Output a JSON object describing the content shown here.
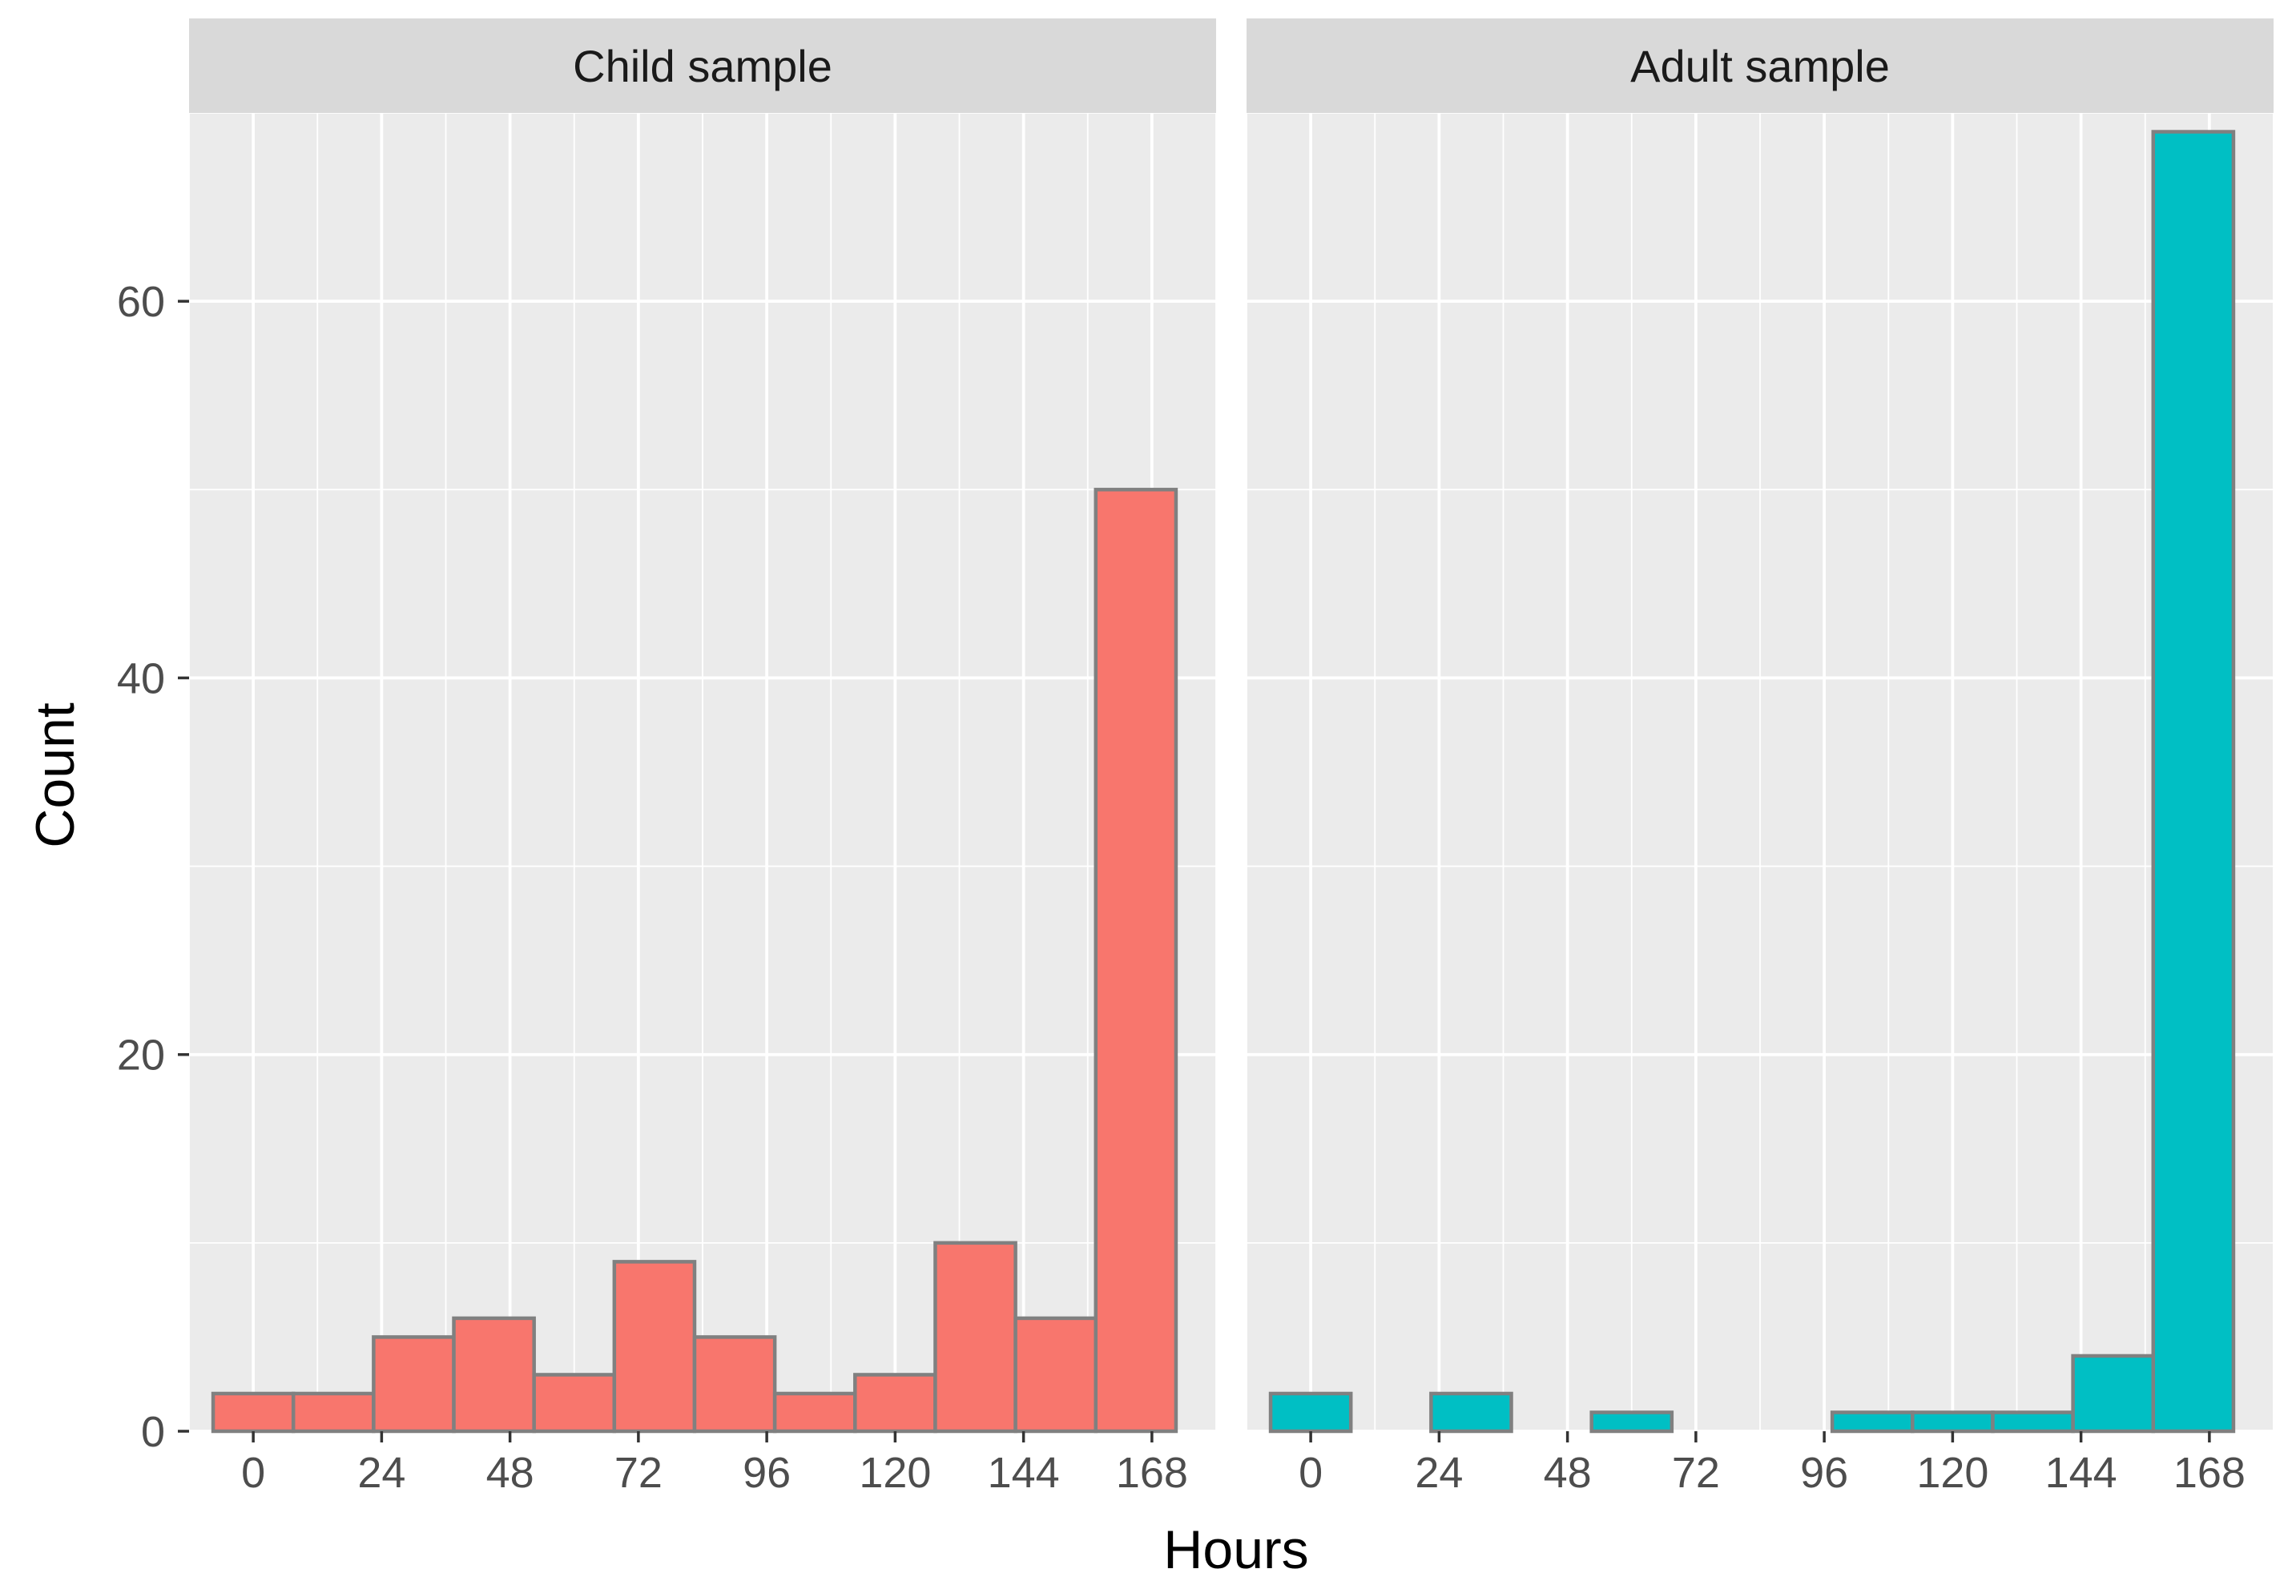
{
  "chart_data": {
    "type": "bar",
    "subtype": "faceted-histogram",
    "xlabel": "Hours",
    "ylabel": "Count",
    "xlim": [
      -12,
      180
    ],
    "ylim": [
      0,
      70
    ],
    "x_ticks": [
      0,
      24,
      48,
      72,
      96,
      120,
      144,
      168
    ],
    "x_tick_labels": [
      "0",
      "24",
      "48",
      "72",
      "96",
      "120",
      "144",
      "168"
    ],
    "y_ticks": [
      0,
      20,
      40,
      60
    ],
    "y_tick_labels": [
      "0",
      "20",
      "40",
      "60"
    ],
    "bin_width": 15,
    "grid": true,
    "bar_outline_color": "#808080",
    "panel_background": "#ebebeb",
    "strip_background": "#d9d9d9",
    "grid_color": "#ffffff",
    "facets": [
      {
        "name": "Child sample",
        "color": "#f8766d",
        "bins": [
          {
            "x0": -7.5,
            "x1": 7.5,
            "count": 2
          },
          {
            "x0": 7.5,
            "x1": 22.5,
            "count": 2
          },
          {
            "x0": 22.5,
            "x1": 37.5,
            "count": 5
          },
          {
            "x0": 37.5,
            "x1": 52.5,
            "count": 6
          },
          {
            "x0": 52.5,
            "x1": 67.5,
            "count": 3
          },
          {
            "x0": 67.5,
            "x1": 82.5,
            "count": 9
          },
          {
            "x0": 82.5,
            "x1": 97.5,
            "count": 5
          },
          {
            "x0": 97.5,
            "x1": 112.5,
            "count": 2
          },
          {
            "x0": 112.5,
            "x1": 127.5,
            "count": 3
          },
          {
            "x0": 127.5,
            "x1": 142.5,
            "count": 10
          },
          {
            "x0": 142.5,
            "x1": 157.5,
            "count": 6
          },
          {
            "x0": 157.5,
            "x1": 172.5,
            "count": 50
          }
        ]
      },
      {
        "name": "Adult sample",
        "color": "#00bfc4",
        "bins": [
          {
            "x0": -7.5,
            "x1": 7.5,
            "count": 2
          },
          {
            "x0": 7.5,
            "x1": 22.5,
            "count": 0
          },
          {
            "x0": 22.5,
            "x1": 37.5,
            "count": 2
          },
          {
            "x0": 37.5,
            "x1": 52.5,
            "count": 0
          },
          {
            "x0": 52.5,
            "x1": 67.5,
            "count": 1
          },
          {
            "x0": 67.5,
            "x1": 82.5,
            "count": 0
          },
          {
            "x0": 82.5,
            "x1": 97.5,
            "count": 0
          },
          {
            "x0": 97.5,
            "x1": 112.5,
            "count": 1
          },
          {
            "x0": 112.5,
            "x1": 127.5,
            "count": 1
          },
          {
            "x0": 127.5,
            "x1": 142.5,
            "count": 1
          },
          {
            "x0": 142.5,
            "x1": 157.5,
            "count": 4
          },
          {
            "x0": 157.5,
            "x1": 172.5,
            "count": 69
          }
        ]
      }
    ]
  }
}
